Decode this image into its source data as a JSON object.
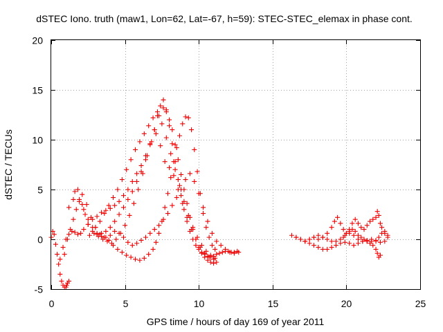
{
  "chart_data": {
    "type": "scatter",
    "title": "dSTEC Iono. truth (maw1, Lon=62, Lat=-67, h=59): STEC-STEC_elemax in phase cont.",
    "xlabel": "GPS time / hours of day 169 of year 2011",
    "ylabel": "dSTEC  / TECUs",
    "xlim": [
      0,
      25
    ],
    "ylim": [
      -5,
      20
    ],
    "xticks": [
      0,
      5,
      10,
      15,
      20,
      25
    ],
    "yticks": [
      -5,
      0,
      5,
      10,
      15,
      20
    ],
    "xtick_labels": [
      "0",
      "5",
      "10",
      "15",
      "20",
      "25"
    ],
    "ytick_labels": [
      "-5",
      "0",
      "5",
      "10",
      "15",
      "20"
    ],
    "grid": true,
    "legend": "none",
    "marker": "plus",
    "color": "#ee0000",
    "series": [
      {
        "x": [
          0.0,
          0.1,
          0.2,
          0.3,
          0.4,
          0.5,
          0.6,
          0.7,
          0.8,
          0.9,
          1.0,
          1.05,
          1.1,
          1.2
        ],
        "y": [
          0.2,
          0.8,
          0.5,
          -0.5,
          -1.5,
          -2.5,
          -3.5,
          -4.2,
          -4.6,
          -4.8,
          -4.8,
          -4.6,
          -4.4,
          -4.2
        ]
      },
      {
        "x": [
          0.6,
          0.8,
          1.0,
          1.2,
          1.4,
          1.6,
          1.8,
          2.0,
          2.2,
          2.5,
          2.8,
          3.1,
          3.4,
          3.7,
          4.0,
          4.3,
          4.6,
          4.9,
          5.2,
          5.5,
          5.8,
          6.1,
          6.4,
          6.7,
          7.0,
          7.3,
          7.6,
          7.8,
          8.0,
          8.2,
          8.4,
          8.6,
          8.8,
          9.0,
          9.2,
          9.4,
          9.6,
          9.8,
          10.0,
          10.2,
          10.4,
          10.6,
          10.8,
          11.0,
          11.2
        ],
        "y": [
          -2.0,
          -0.8,
          0.0,
          0.5,
          0.8,
          0.7,
          0.5,
          0.6,
          1.0,
          1.5,
          2.0,
          2.3,
          2.7,
          2.9,
          3.1,
          3.4,
          3.8,
          4.4,
          5.0,
          5.8,
          6.6,
          7.4,
          8.4,
          9.6,
          11.0,
          12.4,
          13.2,
          12.8,
          12.0,
          11.0,
          9.5,
          8.0,
          6.5,
          5.0,
          3.6,
          2.2,
          1.0,
          0.0,
          -0.8,
          -1.4,
          -1.8,
          -2.1,
          -2.3,
          -2.4,
          -2.3
        ]
      },
      {
        "x": [
          0.9,
          1.1,
          1.3,
          1.5,
          1.7,
          1.9,
          2.1,
          2.3,
          2.5,
          2.8,
          3.1,
          3.4,
          3.7,
          4.0,
          4.3,
          4.6,
          4.9,
          5.2,
          5.5,
          5.8,
          6.1,
          6.4,
          6.7,
          7.0,
          7.2,
          7.4,
          7.6,
          7.8,
          8.0,
          8.2,
          8.4,
          8.6,
          8.8,
          9.0,
          9.2,
          9.4,
          9.6,
          9.8,
          10.0,
          10.2,
          10.4,
          10.6,
          10.8,
          11.0,
          11.2,
          11.4,
          11.6,
          11.8,
          12.0,
          12.2,
          12.4,
          12.6
        ],
        "y": [
          -1.5,
          0.0,
          1.0,
          2.0,
          3.0,
          3.8,
          3.5,
          2.5,
          1.5,
          0.8,
          0.5,
          0.6,
          0.8,
          1.2,
          1.8,
          2.5,
          3.2,
          4.0,
          4.8,
          5.8,
          6.8,
          8.0,
          9.5,
          11.0,
          12.4,
          13.4,
          14.0,
          13.0,
          11.4,
          9.6,
          7.8,
          6.0,
          4.4,
          3.0,
          1.8,
          0.8,
          0.0,
          -0.6,
          -1.0,
          -1.3,
          -1.5,
          -1.7,
          -1.8,
          -1.7,
          -1.5,
          -1.4,
          -1.3,
          -1.2,
          -1.2,
          -1.3,
          -1.3,
          -1.2
        ]
      },
      {
        "x": [
          1.2,
          1.5,
          1.8,
          2.1,
          2.4,
          2.7,
          3.0,
          3.3,
          3.6,
          3.9,
          4.2,
          4.5,
          4.8,
          5.1,
          5.4,
          5.7,
          6.0,
          6.3,
          6.6,
          6.9,
          7.1,
          7.3,
          7.5,
          7.7,
          7.9,
          8.1,
          8.3,
          8.5,
          8.7,
          8.9,
          9.1,
          9.3,
          9.5,
          9.7,
          9.9,
          10.1,
          10.3,
          10.5,
          10.7,
          10.9,
          11.1
        ],
        "y": [
          3.2,
          4.0,
          5.0,
          4.5,
          3.5,
          2.2,
          1.2,
          0.5,
          0.2,
          -0.1,
          -0.6,
          -1.0,
          -1.3,
          -1.6,
          -1.8,
          -2.0,
          -2.1,
          -1.9,
          -1.5,
          -1.0,
          -0.3,
          0.6,
          1.8,
          3.2,
          4.6,
          6.2,
          7.8,
          9.2,
          10.4,
          11.6,
          12.3,
          12.2,
          11.0,
          9.0,
          6.8,
          4.6,
          2.6,
          1.2,
          0.2,
          -0.6,
          -1.0
        ]
      },
      {
        "x": [
          1.6,
          1.9,
          2.2,
          2.5,
          2.8,
          3.1,
          3.4,
          3.7,
          4.0,
          4.3,
          4.6,
          4.9,
          5.2,
          5.5,
          5.8,
          6.1,
          6.4,
          6.7,
          7.0,
          7.3,
          7.6,
          7.9,
          8.2,
          8.5,
          8.8,
          9.1,
          9.4,
          9.7,
          10.0,
          10.3,
          10.6,
          10.9,
          11.2,
          11.5,
          11.8,
          12.1,
          12.4,
          12.7
        ],
        "y": [
          4.8,
          4.0,
          3.0,
          2.0,
          1.2,
          0.6,
          0.3,
          0.2,
          0.4,
          0.8,
          0.6,
          0.2,
          -0.3,
          -0.6,
          -0.4,
          -0.1,
          0.2,
          0.6,
          1.0,
          1.4,
          2.0,
          2.6,
          3.4,
          4.2,
          5.0,
          6.0,
          6.6,
          5.8,
          4.6,
          3.2,
          1.8,
          0.6,
          -0.2,
          -0.6,
          -1.0,
          -1.3,
          -1.4,
          -1.3
        ]
      },
      {
        "x": [
          2.6,
          2.9,
          3.2,
          3.5,
          3.8,
          4.1,
          4.4,
          4.7,
          5.0,
          5.3,
          5.6,
          5.9,
          6.2,
          6.5,
          6.8,
          7.1,
          7.4,
          7.7,
          8.0,
          8.3,
          8.6,
          8.9,
          9.2,
          9.5,
          9.8,
          10.1,
          10.4,
          10.7,
          11.0
        ],
        "y": [
          0.4,
          0.6,
          0.3,
          0.0,
          -0.2,
          -0.4,
          0.0,
          0.6,
          1.4,
          2.4,
          3.6,
          5.0,
          6.6,
          8.4,
          9.8,
          10.6,
          9.4,
          7.8,
          7.2,
          6.4,
          5.0,
          3.6,
          2.2,
          1.0,
          0.0,
          -0.8,
          -1.4,
          -1.8,
          -2.0
        ]
      },
      {
        "x": [
          3.0,
          3.3,
          3.6,
          3.9,
          4.2,
          4.5,
          4.8,
          5.1,
          5.4,
          5.7,
          6.0,
          6.3,
          6.6,
          6.9,
          7.2,
          7.5,
          7.8,
          8.1,
          8.4,
          8.7,
          9.0,
          9.3,
          9.6,
          9.9,
          10.2,
          10.5,
          10.8,
          11.1
        ],
        "y": [
          1.2,
          1.8,
          2.6,
          3.4,
          4.2,
          5.0,
          6.0,
          7.0,
          8.0,
          9.0,
          9.8,
          10.6,
          11.4,
          12.2,
          12.8,
          11.6,
          10.2,
          8.6,
          7.0,
          5.4,
          3.8,
          2.4,
          1.2,
          0.2,
          -0.6,
          -1.2,
          -1.6,
          -1.9
        ]
      },
      {
        "x": [
          16.3,
          16.6,
          16.9,
          17.2,
          17.5,
          17.8,
          18.1,
          18.4,
          18.7,
          19.0,
          19.3,
          19.6,
          19.9,
          20.2,
          20.5,
          20.8,
          21.1,
          21.4,
          21.7,
          22.0,
          22.3,
          22.6
        ],
        "y": [
          0.4,
          0.2,
          0.0,
          -0.2,
          -0.4,
          -0.6,
          -0.8,
          -1.0,
          -1.0,
          -0.8,
          -0.6,
          -0.4,
          -0.3,
          -0.4,
          -0.6,
          -0.4,
          -0.2,
          -0.1,
          0.0,
          -0.1,
          -0.3,
          -0.2
        ]
      },
      {
        "x": [
          16.6,
          16.9,
          17.2,
          17.5,
          17.8,
          18.1,
          18.4,
          18.7,
          19.0,
          19.2,
          19.4,
          19.6,
          19.8,
          20.0,
          20.2,
          20.4,
          20.6,
          20.8,
          21.0,
          21.2,
          21.4,
          21.6,
          21.8,
          22.0,
          22.1,
          22.2,
          22.3
        ],
        "y": [
          0.2,
          0.0,
          -0.2,
          0.0,
          0.2,
          0.0,
          0.2,
          0.6,
          1.2,
          1.8,
          2.2,
          1.6,
          1.0,
          0.6,
          0.8,
          1.0,
          0.8,
          0.4,
          0.2,
          0.0,
          -0.2,
          -0.4,
          -0.6,
          -1.0,
          -1.4,
          -1.8,
          -1.6
        ]
      },
      {
        "x": [
          17.2,
          17.5,
          17.8,
          18.1,
          18.4,
          18.7,
          19.0,
          19.3,
          19.6,
          19.9,
          20.2,
          20.5,
          20.8,
          21.1,
          21.4,
          21.7,
          22.0,
          22.2,
          22.4,
          22.6,
          22.8
        ],
        "y": [
          -0.2,
          0.0,
          0.2,
          0.4,
          0.2,
          0.0,
          -0.2,
          -0.2,
          0.0,
          0.4,
          0.6,
          0.4,
          0.0,
          -0.2,
          -0.2,
          -0.2,
          -0.2,
          0.2,
          0.6,
          0.8,
          0.4
        ]
      },
      {
        "x": [
          19.8,
          20.0,
          20.2,
          20.4,
          20.6,
          20.8,
          21.0,
          21.2,
          21.4,
          21.6,
          21.8,
          22.0,
          22.1,
          22.2,
          22.3,
          22.4,
          22.6,
          22.8
        ],
        "y": [
          0.2,
          0.6,
          1.0,
          1.6,
          2.0,
          1.6,
          1.2,
          1.0,
          1.4,
          1.8,
          2.0,
          2.2,
          2.8,
          2.4,
          1.6,
          1.2,
          0.6,
          0.2
        ]
      }
    ]
  }
}
